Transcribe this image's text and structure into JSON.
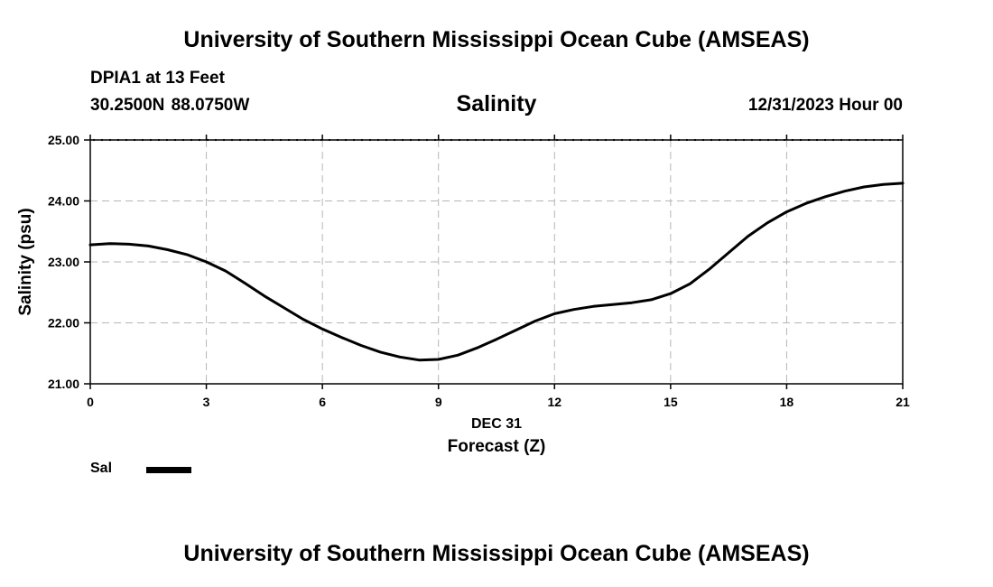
{
  "header": {
    "title": "University of Southern Mississippi Ocean Cube (AMSEAS)",
    "station": "DPIA1 at 13 Feet",
    "coords": "30.2500N  88.0750W",
    "plot_title": "Salinity",
    "datetime": "12/31/2023 Hour 00"
  },
  "footer": {
    "title": "University of Southern Mississippi Ocean Cube (AMSEAS)"
  },
  "legend": {
    "label": "Sal",
    "color": "#000000"
  },
  "chart_data": {
    "type": "line",
    "title": "Salinity",
    "xlabel": "Forecast (Z)",
    "xlabel_date": "DEC 31",
    "ylabel": "Salinity (psu)",
    "xlim": [
      0,
      21
    ],
    "ylim": [
      21.0,
      25.0
    ],
    "xticks": [
      0,
      3,
      6,
      9,
      12,
      15,
      18,
      21
    ],
    "xtick_labels": [
      "0",
      "3",
      "6",
      "9",
      "12",
      "15",
      "18",
      "21"
    ],
    "yticks": [
      21.0,
      22.0,
      23.0,
      24.0,
      25.0
    ],
    "ytick_labels": [
      "21.00",
      "22.00",
      "23.00",
      "24.00",
      "25.00"
    ],
    "grid": true,
    "legend_position": "bottom-left",
    "series": [
      {
        "name": "Sal",
        "color": "#000000",
        "x": [
          0,
          0.5,
          1,
          1.5,
          2,
          2.5,
          3,
          3.5,
          4,
          4.5,
          5,
          5.5,
          6,
          6.5,
          7,
          7.5,
          8,
          8.5,
          9,
          9.5,
          10,
          10.5,
          11,
          11.5,
          12,
          12.5,
          13,
          13.5,
          14,
          14.5,
          15,
          15.5,
          16,
          16.5,
          17,
          17.5,
          18,
          18.5,
          19,
          19.5,
          20,
          20.5,
          21
        ],
        "values": [
          23.28,
          23.3,
          23.29,
          23.26,
          23.2,
          23.12,
          23.0,
          22.85,
          22.65,
          22.44,
          22.25,
          22.06,
          21.9,
          21.76,
          21.63,
          21.52,
          21.44,
          21.39,
          21.4,
          21.47,
          21.59,
          21.73,
          21.88,
          22.03,
          22.15,
          22.22,
          22.27,
          22.3,
          22.33,
          22.38,
          22.48,
          22.64,
          22.88,
          23.15,
          23.42,
          23.64,
          23.82,
          23.96,
          24.07,
          24.16,
          24.23,
          24.27,
          24.29
        ]
      }
    ]
  }
}
